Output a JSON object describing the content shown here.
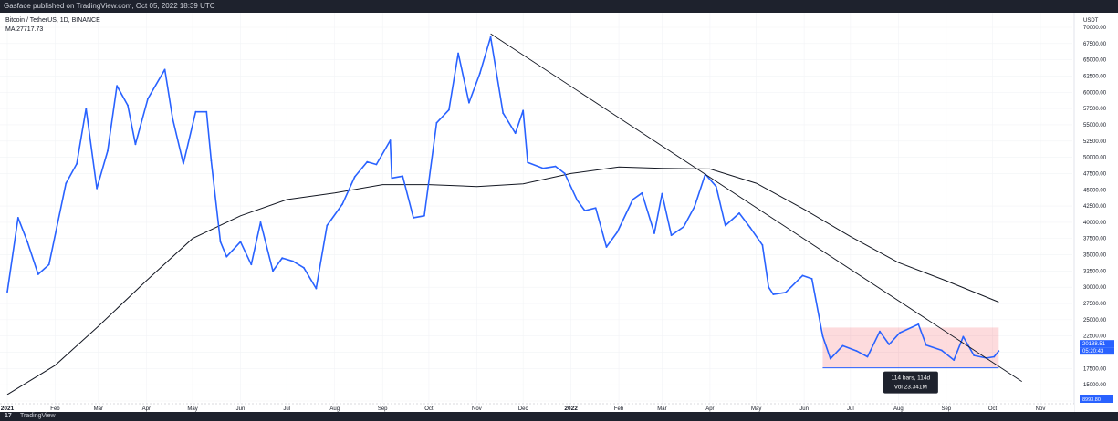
{
  "header": {
    "publish_text": "Gasface published on TradingView.com, Oct 05, 2022 18:39 UTC"
  },
  "legend": {
    "symbol_line": "Bitcoin / TetherUS, 1D, BINANCE",
    "ma_label": "MA",
    "ma_value": "27717.73"
  },
  "footer": {
    "logo": "17",
    "brand": "TradingView"
  },
  "chart_data": {
    "type": "line",
    "symbol": "Bitcoin / TetherUS",
    "interval": "1D",
    "exchange": "BINANCE",
    "currency_label": "USDT",
    "price_axis": {
      "min": 12500,
      "max": 70000,
      "tick_labels": [
        "70000.00",
        "67500.00",
        "65000.00",
        "62500.00",
        "60000.00",
        "57500.00",
        "55000.00",
        "52500.00",
        "50000.00",
        "47500.00",
        "45000.00",
        "42500.00",
        "40000.00",
        "37500.00",
        "35000.00",
        "32500.00",
        "30000.00",
        "27500.00",
        "25000.00",
        "22500.00",
        "20000.00",
        "17500.00",
        "15000.00",
        "12500.00"
      ],
      "bottom_label": "8993.80"
    },
    "time_axis": {
      "labels": [
        "2021",
        "Feb",
        "Mar",
        "Apr",
        "May",
        "Jun",
        "Jul",
        "Aug",
        "Sep",
        "Oct",
        "Nov",
        "Dec",
        "2022",
        "Feb",
        "Mar",
        "Apr",
        "May",
        "Jun",
        "Jul",
        "Aug",
        "Sep",
        "Oct",
        "Nov"
      ]
    },
    "price_series": {
      "name": "BTCUSDT",
      "color": "#2962ff",
      "points": [
        [
          "2021-01-01",
          29300
        ],
        [
          "2021-01-08",
          40700
        ],
        [
          "2021-01-14",
          37000
        ],
        [
          "2021-01-21",
          32000
        ],
        [
          "2021-01-28",
          33500
        ],
        [
          "2021-02-08",
          46000
        ],
        [
          "2021-02-15",
          49000
        ],
        [
          "2021-02-21",
          57500
        ],
        [
          "2021-02-28",
          45200
        ],
        [
          "2021-03-07",
          51000
        ],
        [
          "2021-03-13",
          61000
        ],
        [
          "2021-03-20",
          58000
        ],
        [
          "2021-03-25",
          52000
        ],
        [
          "2021-04-02",
          59000
        ],
        [
          "2021-04-13",
          63500
        ],
        [
          "2021-04-18",
          56000
        ],
        [
          "2021-04-25",
          49000
        ],
        [
          "2021-05-03",
          57000
        ],
        [
          "2021-05-10",
          57000
        ],
        [
          "2021-05-13",
          49500
        ],
        [
          "2021-05-19",
          37000
        ],
        [
          "2021-05-23",
          34700
        ],
        [
          "2021-06-01",
          37000
        ],
        [
          "2021-06-08",
          33500
        ],
        [
          "2021-06-14",
          40000
        ],
        [
          "2021-06-22",
          32500
        ],
        [
          "2021-06-28",
          34500
        ],
        [
          "2021-07-05",
          34000
        ],
        [
          "2021-07-12",
          33000
        ],
        [
          "2021-07-20",
          29800
        ],
        [
          "2021-07-27",
          39500
        ],
        [
          "2021-08-06",
          42800
        ],
        [
          "2021-08-14",
          47000
        ],
        [
          "2021-08-22",
          49300
        ],
        [
          "2021-08-28",
          48900
        ],
        [
          "2021-09-06",
          52600
        ],
        [
          "2021-09-07",
          46800
        ],
        [
          "2021-09-14",
          47100
        ],
        [
          "2021-09-21",
          40700
        ],
        [
          "2021-09-28",
          41000
        ],
        [
          "2021-10-06",
          55300
        ],
        [
          "2021-10-14",
          57300
        ],
        [
          "2021-10-20",
          66000
        ],
        [
          "2021-10-27",
          58400
        ],
        [
          "2021-11-03",
          62900
        ],
        [
          "2021-11-10",
          68500
        ],
        [
          "2021-11-18",
          56800
        ],
        [
          "2021-11-26",
          53700
        ],
        [
          "2021-12-01",
          57200
        ],
        [
          "2021-12-04",
          49200
        ],
        [
          "2021-12-14",
          48300
        ],
        [
          "2021-12-22",
          48600
        ],
        [
          "2021-12-28",
          47500
        ],
        [
          "2022-01-05",
          43400
        ],
        [
          "2022-01-10",
          41800
        ],
        [
          "2022-01-17",
          42200
        ],
        [
          "2022-01-24",
          36200
        ],
        [
          "2022-01-31",
          38500
        ],
        [
          "2022-02-10",
          43500
        ],
        [
          "2022-02-16",
          44500
        ],
        [
          "2022-02-24",
          38300
        ],
        [
          "2022-03-01",
          44400
        ],
        [
          "2022-03-07",
          38000
        ],
        [
          "2022-03-15",
          39300
        ],
        [
          "2022-03-22",
          42400
        ],
        [
          "2022-03-29",
          47400
        ],
        [
          "2022-04-05",
          45500
        ],
        [
          "2022-04-11",
          39500
        ],
        [
          "2022-04-20",
          41400
        ],
        [
          "2022-04-27",
          39200
        ],
        [
          "2022-05-05",
          36500
        ],
        [
          "2022-05-09",
          30000
        ],
        [
          "2022-05-12",
          28900
        ],
        [
          "2022-05-20",
          29200
        ],
        [
          "2022-05-31",
          31800
        ],
        [
          "2022-06-06",
          31300
        ],
        [
          "2022-06-13",
          22500
        ],
        [
          "2022-06-18",
          19000
        ],
        [
          "2022-06-26",
          21000
        ],
        [
          "2022-07-05",
          20200
        ],
        [
          "2022-07-12",
          19300
        ],
        [
          "2022-07-20",
          23200
        ],
        [
          "2022-07-26",
          21200
        ],
        [
          "2022-08-02",
          23000
        ],
        [
          "2022-08-14",
          24300
        ],
        [
          "2022-08-19",
          21100
        ],
        [
          "2022-08-29",
          20300
        ],
        [
          "2022-09-06",
          18800
        ],
        [
          "2022-09-12",
          22400
        ],
        [
          "2022-09-19",
          19500
        ],
        [
          "2022-09-27",
          19100
        ],
        [
          "2022-10-02",
          19300
        ],
        [
          "2022-10-05",
          20189
        ]
      ]
    },
    "moving_average": {
      "label": "MA",
      "value": 27717.73,
      "color": "#131722",
      "points": [
        [
          "2021-01-01",
          13500
        ],
        [
          "2021-02-01",
          18000
        ],
        [
          "2021-03-01",
          24000
        ],
        [
          "2021-04-01",
          31000
        ],
        [
          "2021-05-01",
          37500
        ],
        [
          "2021-06-01",
          41000
        ],
        [
          "2021-07-01",
          43500
        ],
        [
          "2021-08-01",
          44500
        ],
        [
          "2021-09-01",
          45800
        ],
        [
          "2021-10-01",
          45800
        ],
        [
          "2021-11-01",
          45500
        ],
        [
          "2021-12-01",
          45900
        ],
        [
          "2022-01-01",
          47500
        ],
        [
          "2022-02-01",
          48500
        ],
        [
          "2022-03-01",
          48300
        ],
        [
          "2022-04-01",
          48200
        ],
        [
          "2022-05-01",
          46000
        ],
        [
          "2022-06-01",
          42000
        ],
        [
          "2022-07-01",
          37800
        ],
        [
          "2022-08-01",
          33800
        ],
        [
          "2022-09-01",
          31000
        ],
        [
          "2022-10-05",
          27717.73
        ]
      ]
    },
    "trendline": [
      [
        "2021-11-10",
        69000
      ],
      [
        "2022-10-20",
        15500
      ]
    ],
    "range_box": {
      "start": "2022-06-13",
      "end": "2022-10-05",
      "high": 23800,
      "low": 17600,
      "color": "#f23645"
    },
    "range_tooltip": {
      "line1": "114 bars, 114d",
      "line2": "Vol 23.341M"
    },
    "current_price": {
      "value_label": "20188.51",
      "countdown_label": "05:20:43"
    }
  }
}
